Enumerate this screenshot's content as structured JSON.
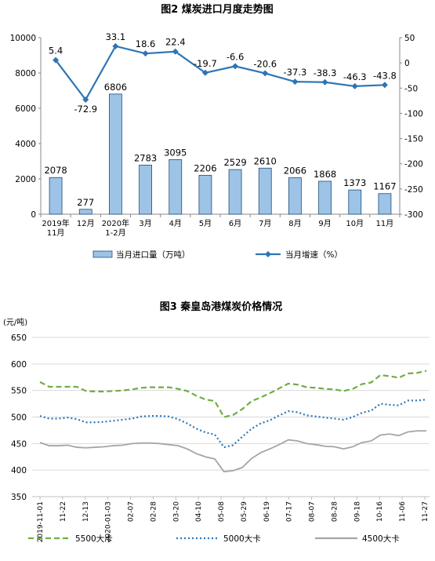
{
  "chart_data": [
    {
      "type": "bar+line",
      "title": "图2  煤炭进口月度走势图",
      "categories": [
        "2019年\n11月",
        "12月",
        "2020年\n1-2月",
        "3月",
        "4月",
        "5月",
        "6月",
        "7月",
        "8月",
        "9月",
        "10月",
        "11月"
      ],
      "series": [
        {
          "name": "当月进口量（万吨）",
          "type": "bar",
          "axis": "left",
          "color": "#9DC3E6",
          "values": [
            2078,
            277,
            6806,
            2783,
            3095,
            2206,
            2529,
            2610,
            2066,
            1868,
            1373,
            1167
          ],
          "labels": [
            "2078",
            "277",
            "6806",
            "2783",
            "3095",
            "2206",
            "2529",
            "2610",
            "2066",
            "1868",
            "1373",
            "1167"
          ]
        },
        {
          "name": "当月增速（%）",
          "type": "line",
          "axis": "right",
          "color": "#2E75B6",
          "values": [
            5.4,
            -72.9,
            33.1,
            18.6,
            22.4,
            -19.7,
            -6.6,
            -20.6,
            -37.3,
            -38.3,
            -46.3,
            -43.8
          ],
          "labels": [
            "5.4",
            "-72.9",
            "33.1",
            "18.6",
            "22.4",
            "-19.7",
            "-6.6",
            "-20.6",
            "-37.3",
            "-38.3",
            "-46.3",
            "-43.8"
          ]
        }
      ],
      "left_axis": {
        "min": 0,
        "max": 10000,
        "ticks": [
          "0",
          "2000",
          "4000",
          "6000",
          "8000",
          "10000"
        ]
      },
      "right_axis": {
        "min": -300,
        "max": 50,
        "ticks": [
          "50",
          "0",
          "-50",
          "-100",
          "-150",
          "-200",
          "-250",
          "-300"
        ]
      },
      "grid": false,
      "legend": "bottom"
    },
    {
      "type": "line",
      "title": "图3    秦皇岛港煤炭价格情况",
      "unit_label": "(元/吨)",
      "ylim": [
        350,
        650
      ],
      "yticks": [
        "350",
        "400",
        "450",
        "500",
        "550",
        "600",
        "650"
      ],
      "grid": true,
      "legend": "bottom",
      "x_ticks": [
        "2019-11-01",
        "11-22",
        "12-13",
        "2020-01-03",
        "02-07",
        "02-28",
        "03-20",
        "04-10",
        "05-08",
        "05-29",
        "06-19",
        "07-17",
        "08-07",
        "08-28",
        "09-18",
        "10-16",
        "11-06",
        "11-27"
      ],
      "series": [
        {
          "name": "5500大卡",
          "color": "#70AD47",
          "dash": "dashed",
          "values": [
            566,
            557,
            557,
            557,
            557,
            549,
            548,
            548,
            549,
            550,
            552,
            555,
            556,
            556,
            556,
            553,
            549,
            540,
            533,
            530,
            500,
            504,
            515,
            530,
            537,
            545,
            554,
            563,
            561,
            556,
            555,
            553,
            552,
            549,
            553,
            562,
            565,
            579,
            577,
            574,
            582,
            583,
            587
          ]
        },
        {
          "name": "5000大卡",
          "color": "#2E75B6",
          "dash": "dotted",
          "values": [
            502,
            497,
            497,
            499,
            496,
            490,
            490,
            491,
            493,
            495,
            497,
            501,
            502,
            502,
            501,
            496,
            488,
            478,
            471,
            467,
            443,
            447,
            463,
            478,
            488,
            494,
            503,
            511,
            509,
            503,
            501,
            499,
            497,
            495,
            500,
            508,
            512,
            525,
            523,
            522,
            531,
            531,
            533
          ]
        },
        {
          "name": "4500大卡",
          "color": "#A5A5A5",
          "dash": "solid",
          "values": [
            452,
            446,
            446,
            447,
            443,
            442,
            443,
            444,
            446,
            447,
            450,
            451,
            451,
            450,
            448,
            446,
            440,
            431,
            425,
            421,
            397,
            399,
            405,
            422,
            433,
            440,
            448,
            457,
            455,
            450,
            448,
            445,
            444,
            440,
            444,
            452,
            455,
            466,
            468,
            465,
            472,
            474,
            474
          ]
        }
      ]
    }
  ]
}
